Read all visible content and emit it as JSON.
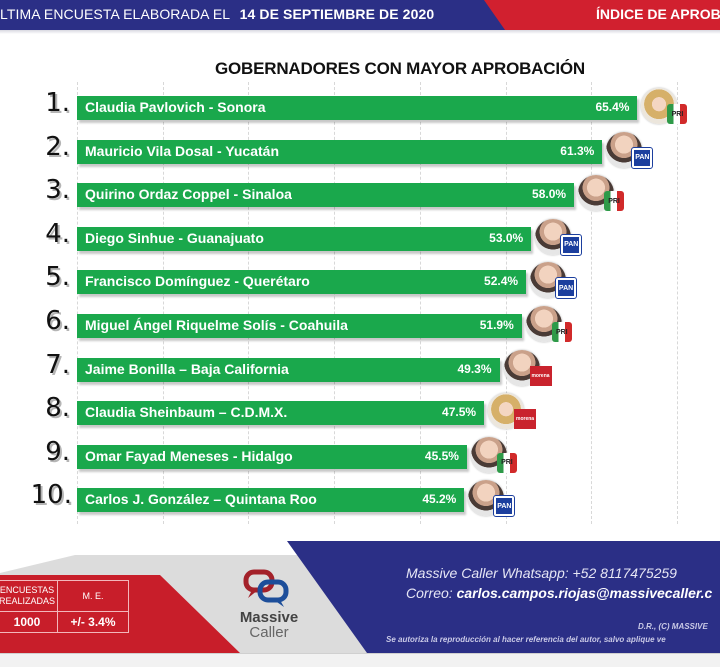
{
  "header": {
    "survey_date_prefix": "LTIMA ENCUESTA ELABORADA EL",
    "survey_date": "14 DE SEPTIEMBRE DE 2020",
    "section_title": "ÍNDICE DE APROB",
    "colors": {
      "blue": "#2b2f86",
      "red": "#d1202f"
    }
  },
  "chart_data": {
    "type": "bar",
    "orientation": "horizontal",
    "title": "GOBERNADORES CON MAYOR APROBACIÓN",
    "xlabel": "",
    "ylabel": "",
    "xlim": [
      0,
      70
    ],
    "grid": true,
    "grid_step": 10,
    "bar_color": "#1aa84c",
    "value_suffix": "%",
    "ranks": [
      "1.",
      "2.",
      "3.",
      "4.",
      "5.",
      "6.",
      "7.",
      "8.",
      "9.",
      "10."
    ],
    "categories": [
      "Claudia Pavlovich - Sonora",
      "Mauricio Vila Dosal - Yucatán",
      "Quirino Ordaz Coppel - Sinaloa",
      "Diego Sinhue - Guanajuato",
      "Francisco Domínguez - Querétaro",
      "Miguel Ángel Riquelme Solís - Coahuila",
      "Jaime Bonilla – Baja California",
      "Claudia Sheinbaum – C.D.M.X.",
      "Omar Fayad Meneses - Hidalgo",
      "Carlos J. González – Quintana Roo"
    ],
    "values": [
      65.4,
      61.3,
      58.0,
      53.0,
      52.4,
      51.9,
      49.3,
      47.5,
      45.5,
      45.2
    ],
    "value_labels": [
      "65.4%",
      "61.3%",
      "58.0%",
      "53.0%",
      "52.4%",
      "51.9%",
      "49.3%",
      "47.5%",
      "45.5%",
      "45.2%"
    ],
    "parties": [
      "PRI",
      "PAN",
      "PRI",
      "PAN",
      "PAN",
      "PRI",
      "MORENA",
      "MORENA",
      "PRI",
      "PAN"
    ],
    "photo_gender": [
      "f",
      "m",
      "m",
      "m",
      "m",
      "m",
      "m",
      "f",
      "m",
      "m"
    ]
  },
  "party_icons": {
    "PAN": {
      "icon": "pan-logo-icon",
      "text": "PAN",
      "color": "#1c3f9e"
    },
    "PRI": {
      "icon": "pri-logo-icon",
      "text": "PRI",
      "color": "#2e9a48"
    },
    "MORENA": {
      "icon": "morena-logo-icon",
      "text": "morena",
      "color": "#c9232d"
    }
  },
  "footer": {
    "stats": {
      "surveys_header": "ENCUESTAS REALIZADAS",
      "surveys_value": "1000",
      "margin_header": "M. E.",
      "margin_value": "+/- 3.4%"
    },
    "logo": {
      "word1": "Massive",
      "word2": "Caller"
    },
    "whatsapp_line": "Massive Caller Whatsapp: +52   8117475259",
    "email_label": "Correo:",
    "email": "carlos.campos.riojas@massivecaller.c",
    "rights_line1": "D.R., (C) MASSIVE",
    "rights_line2": "Se autoriza la reproducción al hacer referencia del autor, salvo aplique ve"
  }
}
